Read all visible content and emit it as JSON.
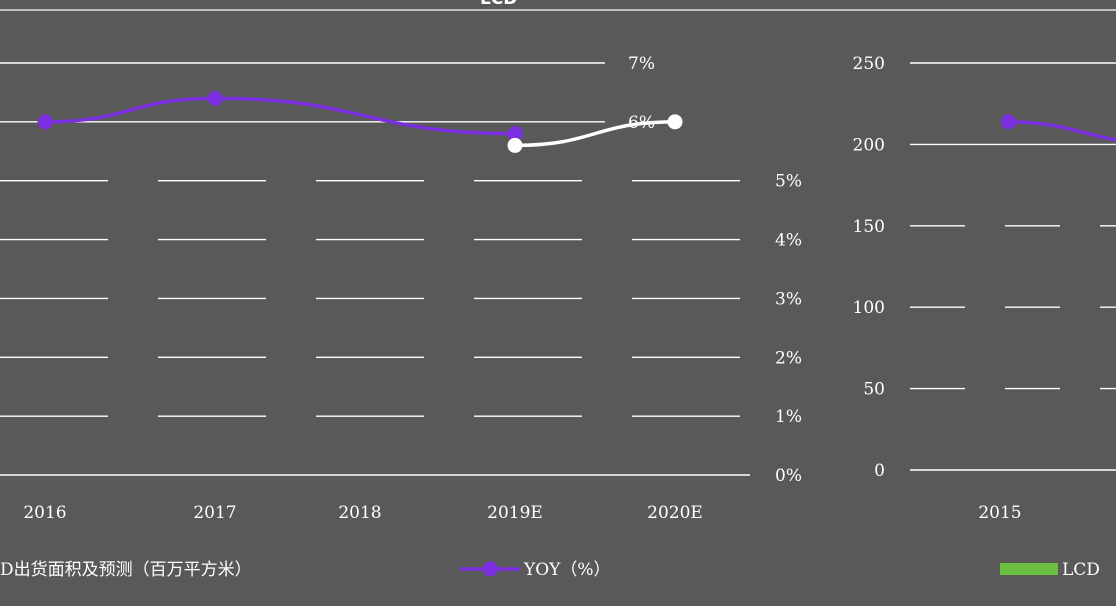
{
  "title": "LCD",
  "chart_data": [
    {
      "type": "line",
      "categories": [
        "2016",
        "2017",
        "2018",
        "2019E",
        "2020E"
      ],
      "right_axis": {
        "ticks": [
          "7%",
          "6%",
          "5%",
          "4%",
          "3%",
          "2%",
          "1%",
          "0%"
        ],
        "ylim": [
          0,
          7
        ]
      },
      "series": [
        {
          "name": "YOY（%）",
          "values": [
            6.0,
            6.4,
            null,
            5.8,
            null
          ],
          "color": "#7b2fe0"
        },
        {
          "name": "",
          "values": [
            null,
            null,
            null,
            5.6,
            6.0
          ],
          "color": "#ffffff"
        }
      ],
      "legend": [
        "D出货面积及预测（百万平方米）",
        "YOY（%）"
      ],
      "legend_position": "bottom",
      "grid": true
    },
    {
      "type": "bar",
      "categories": [
        "2015"
      ],
      "left_axis": {
        "ticks": [
          "250",
          "200",
          "150",
          "100",
          "50",
          "0"
        ],
        "ylim": [
          0,
          250
        ]
      },
      "series": [
        {
          "name": "YOY（%）",
          "values": [
            6.0
          ],
          "color": "#7b2fe0"
        }
      ],
      "legend": [
        "LCD"
      ],
      "legend_color": "#6abf3e",
      "grid": true
    }
  ]
}
